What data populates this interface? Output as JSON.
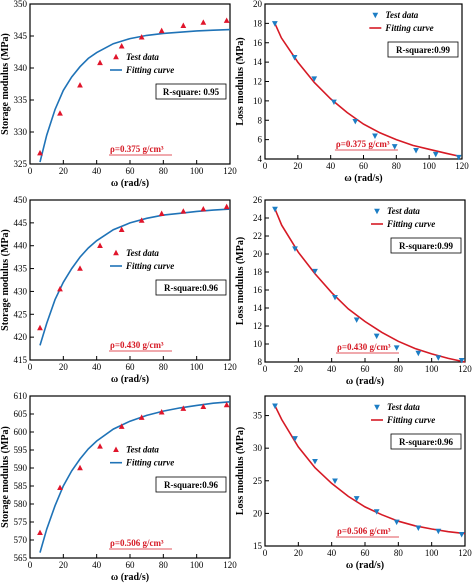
{
  "colors": {
    "test_up": "#e0152b",
    "test_down": "#1c7dc4",
    "fit_blue": "#1f73b7",
    "fit_red": "#d61a25",
    "rho": "#d61a25"
  },
  "chart_data": [
    {
      "type": "scatter+line",
      "id": "storage-0430",
      "ylabel": "Storage modulus (MPa)",
      "xlabel": "ω (rad/s)",
      "xlim": [
        0,
        120
      ],
      "ylim": [
        325,
        350
      ],
      "xticks": [
        0,
        20,
        40,
        60,
        80,
        100,
        120
      ],
      "yticks": [
        325,
        330,
        335,
        340,
        345,
        350
      ],
      "legend": {
        "test": "Test data",
        "fit": "Fitting curve",
        "position": "right"
      },
      "r_square": "R-square: 0.95",
      "density": "ρ=0.375 g/cm³",
      "marker": "triangle-up",
      "marker_color": "#e0152b",
      "fit_color": "#1f73b7",
      "test_data": {
        "x": [
          6,
          18,
          30,
          42,
          55,
          67,
          79,
          92,
          104,
          118
        ],
        "y": [
          326.7,
          332.9,
          337.3,
          340.8,
          343.4,
          344.8,
          345.8,
          346.6,
          347.1,
          347.4
        ]
      },
      "fitting_curve": {
        "x": [
          6,
          10,
          15,
          20,
          25,
          30,
          35,
          40,
          50,
          60,
          70,
          80,
          90,
          100,
          110,
          120
        ],
        "y": [
          325.3,
          329.5,
          333.5,
          336.5,
          338.6,
          340.2,
          341.5,
          342.4,
          343.8,
          344.6,
          345.1,
          345.4,
          345.6,
          345.8,
          345.9,
          346.0
        ]
      }
    },
    {
      "type": "scatter+line",
      "id": "loss-0375",
      "ylabel": "Loss modulus (MPa)",
      "xlabel": "ω (rad/s)",
      "xlim": [
        0,
        120
      ],
      "ylim": [
        4,
        20
      ],
      "xticks": [
        0,
        20,
        40,
        60,
        80,
        100,
        120
      ],
      "yticks": [
        4,
        6,
        8,
        10,
        12,
        14,
        16,
        18,
        20
      ],
      "legend": {
        "test": "Test data",
        "fit": "Fitting curve",
        "position": "top-right"
      },
      "r_square": "R-square:0.99",
      "density": "ρ=0.375 g/cm³",
      "marker": "triangle-down",
      "marker_color": "#1c7dc4",
      "fit_color": "#d61a25",
      "test_data": {
        "x": [
          6,
          18,
          30,
          42,
          55,
          67,
          79,
          92,
          104,
          118
        ],
        "y": [
          18.0,
          14.5,
          12.3,
          9.9,
          7.9,
          6.4,
          5.3,
          4.9,
          4.5,
          4.2
        ]
      },
      "fitting_curve": {
        "x": [
          6,
          10,
          20,
          30,
          40,
          50,
          60,
          70,
          80,
          90,
          100,
          110,
          118
        ],
        "y": [
          18.0,
          16.5,
          14.0,
          11.9,
          10.2,
          8.8,
          7.6,
          6.7,
          6.0,
          5.4,
          5.0,
          4.6,
          4.3
        ]
      }
    },
    {
      "type": "scatter+line",
      "id": "storage-0430b",
      "ylabel": "Storage modulus (MPa)",
      "xlabel": "ω (rad/s)",
      "xlim": [
        0,
        120
      ],
      "ylim": [
        415,
        450
      ],
      "xticks": [
        0,
        20,
        40,
        60,
        80,
        100,
        120
      ],
      "yticks": [
        415,
        420,
        425,
        430,
        435,
        440,
        445,
        450
      ],
      "legend": {
        "test": "Test data",
        "fit": "Fitting curve",
        "position": "right"
      },
      "r_square": "R-square:0.96",
      "density": "ρ=0.430 g/cm³",
      "marker": "triangle-up",
      "marker_color": "#e0152b",
      "fit_color": "#1f73b7",
      "test_data": {
        "x": [
          6,
          18,
          30,
          42,
          55,
          67,
          79,
          92,
          104,
          118
        ],
        "y": [
          422.0,
          430.5,
          435.0,
          440.0,
          443.5,
          445.5,
          447.0,
          447.5,
          448.0,
          448.5
        ]
      },
      "fitting_curve": {
        "x": [
          6,
          10,
          15,
          20,
          25,
          30,
          35,
          40,
          50,
          60,
          70,
          80,
          90,
          100,
          110,
          120
        ],
        "y": [
          418.2,
          423.0,
          428.2,
          432.0,
          435.0,
          437.5,
          439.5,
          441.1,
          443.5,
          445.0,
          446.0,
          446.7,
          447.1,
          447.5,
          447.8,
          448.0
        ]
      }
    },
    {
      "type": "scatter+line",
      "id": "loss-0430",
      "ylabel": "Loss modulus (MPa)",
      "xlabel": "ω (rad/s)",
      "xlim": [
        0,
        120
      ],
      "ylim": [
        8,
        26
      ],
      "xticks": [
        0,
        20,
        40,
        60,
        80,
        100,
        120
      ],
      "yticks": [
        8,
        10,
        12,
        14,
        16,
        18,
        20,
        22,
        24,
        26
      ],
      "legend": {
        "test": "Test data",
        "fit": "Fitting curve",
        "position": "top-right"
      },
      "r_square": "R-square:0.99",
      "density": "ρ=0.430 g/cm³",
      "marker": "triangle-down",
      "marker_color": "#1c7dc4",
      "fit_color": "#d61a25",
      "test_data": {
        "x": [
          6,
          18,
          30,
          42,
          55,
          67,
          79,
          92,
          104,
          118
        ],
        "y": [
          25.0,
          20.6,
          18.1,
          15.2,
          12.7,
          10.9,
          9.6,
          9.0,
          8.5,
          8.2
        ]
      },
      "fitting_curve": {
        "x": [
          6,
          10,
          20,
          30,
          40,
          50,
          60,
          70,
          80,
          90,
          100,
          110,
          120
        ],
        "y": [
          25.0,
          23.2,
          20.2,
          17.8,
          15.7,
          13.9,
          12.5,
          11.3,
          10.3,
          9.5,
          8.9,
          8.4,
          8.0
        ]
      }
    },
    {
      "type": "scatter+line",
      "id": "storage-0506",
      "ylabel": "Storage modulus (MPa)",
      "xlabel": "ω (rad/s)",
      "xlim": [
        0,
        120
      ],
      "ylim": [
        565,
        610
      ],
      "xticks": [
        0,
        20,
        40,
        60,
        80,
        100,
        120
      ],
      "yticks": [
        565,
        570,
        575,
        580,
        585,
        590,
        595,
        600,
        605,
        610
      ],
      "legend": {
        "test": "Test data",
        "fit": "Fitting curve",
        "position": "right"
      },
      "r_square": "R-square:0.96",
      "density": "ρ=0.506 g/cm³",
      "marker": "triangle-up",
      "marker_color": "#e0152b",
      "fit_color": "#1f73b7",
      "test_data": {
        "x": [
          6,
          18,
          30,
          42,
          55,
          67,
          79,
          92,
          104,
          118
        ],
        "y": [
          572.0,
          584.5,
          590.0,
          596.0,
          601.5,
          604.0,
          605.5,
          606.5,
          607.0,
          607.5
        ]
      },
      "fitting_curve": {
        "x": [
          6,
          10,
          15,
          20,
          25,
          30,
          35,
          40,
          50,
          60,
          70,
          80,
          90,
          100,
          110,
          120
        ],
        "y": [
          566.5,
          573.0,
          579.5,
          585.0,
          589.2,
          592.5,
          595.3,
          597.5,
          600.8,
          603.0,
          604.6,
          605.8,
          606.7,
          607.4,
          608.0,
          608.4
        ]
      }
    },
    {
      "type": "scatter+line",
      "id": "loss-0506",
      "ylabel": "Loss modulus (MPa)",
      "xlabel": "ω (rad/s)",
      "xlim": [
        0,
        120
      ],
      "ylim": [
        15,
        38
      ],
      "xticks": [
        0,
        20,
        40,
        60,
        80,
        100,
        120
      ],
      "yticks": [
        15,
        20,
        25,
        30,
        35
      ],
      "legend": {
        "test": "Test data",
        "fit": "Fitting curve",
        "position": "top-right"
      },
      "r_square": "R-square:0.96",
      "density": "ρ=0.506 g/cm³",
      "marker": "triangle-down",
      "marker_color": "#1c7dc4",
      "fit_color": "#d61a25",
      "test_data": {
        "x": [
          6,
          18,
          30,
          42,
          55,
          67,
          79,
          92,
          104,
          118
        ],
        "y": [
          36.5,
          31.5,
          28.0,
          25.0,
          22.3,
          20.3,
          18.7,
          17.8,
          17.3,
          16.8
        ]
      },
      "fitting_curve": {
        "x": [
          6,
          10,
          20,
          30,
          40,
          50,
          60,
          70,
          80,
          90,
          100,
          110,
          120
        ],
        "y": [
          36.5,
          34.4,
          30.2,
          27.0,
          24.6,
          22.6,
          21.0,
          19.8,
          18.8,
          18.1,
          17.6,
          17.2,
          16.9
        ]
      }
    }
  ]
}
